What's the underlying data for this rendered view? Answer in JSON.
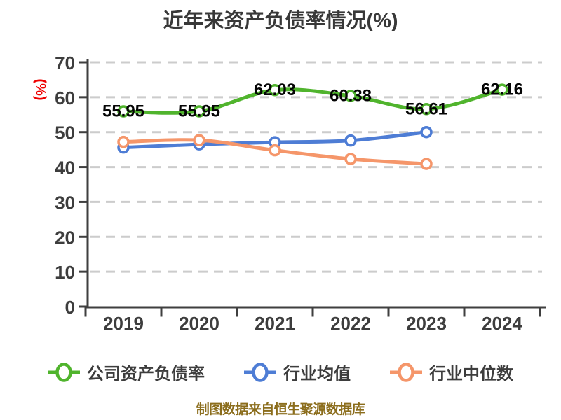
{
  "page": {
    "source_note": "制图数据来自恒生聚源数据库"
  },
  "colors": {
    "background": "#ffffff",
    "axis": "#3f3f3f",
    "grid": "#cccccc",
    "tick_text": "#3d3d3d",
    "title_text": "#383838",
    "data_label": "#050505",
    "ylabel_red": "#ee0000",
    "source_note": "#8b6d1c",
    "series_green": "#50b42d",
    "series_blue": "#4e7dd5",
    "series_orange": "#f5966a",
    "marker_fill": "#ffffff"
  },
  "chart_data": {
    "type": "line",
    "title": "近年来资产负债率情况(%)",
    "ylabel": "(%)",
    "xlabel": "",
    "categories": [
      "2019",
      "2020",
      "2021",
      "2022",
      "2023",
      "2024"
    ],
    "ylim": [
      0,
      70
    ],
    "ytick_step": 10,
    "yticks": [
      0,
      10,
      20,
      30,
      40,
      50,
      60,
      70
    ],
    "grid": "horizontal-dashed",
    "legend_position": "bottom",
    "smooth_lines": true,
    "series": [
      {
        "name": "公司资产负债率",
        "color": "#50b42d",
        "values": [
          55.95,
          55.95,
          62.03,
          60.38,
          56.61,
          62.16
        ],
        "labels": [
          "55.95",
          "55.95",
          "62.03",
          "60.38",
          "56.61",
          "62.16"
        ],
        "show_labels": true
      },
      {
        "name": "行业均值",
        "color": "#4e7dd5",
        "values": [
          45.6,
          46.5,
          47.1,
          47.6,
          50.0,
          null
        ],
        "labels": [],
        "show_labels": false
      },
      {
        "name": "行业中位数",
        "color": "#f5966a",
        "values": [
          47.2,
          47.7,
          44.8,
          42.3,
          40.9,
          null
        ],
        "labels": [],
        "show_labels": false
      }
    ]
  }
}
